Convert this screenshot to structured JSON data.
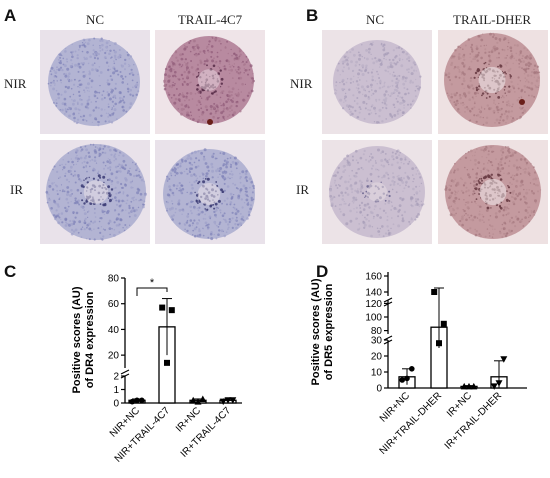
{
  "panels": {
    "A": {
      "letter": "A",
      "col_labels": [
        "NC",
        "TRAIL-4C7"
      ],
      "row_labels": [
        "NIR",
        "IR"
      ]
    },
    "B": {
      "letter": "B",
      "col_labels": [
        "NC",
        "TRAIL-DHER"
      ],
      "row_labels": [
        "NIR",
        "IR"
      ]
    },
    "C": {
      "letter": "C"
    },
    "D": {
      "letter": "D"
    }
  },
  "chart_data": [
    {
      "panel": "C",
      "type": "bar",
      "ylabel": "Positive scores  (AU)\nof DR4 expression",
      "categories": [
        "NIR+NC",
        "NIR+TRAIL-4C7",
        "IR+NC",
        "IR+TRAIL-4C7"
      ],
      "values": [
        0.2,
        42,
        0.2,
        0.2
      ],
      "error": [
        0.1,
        22,
        0.1,
        0.1
      ],
      "points": [
        [
          0.1,
          0.2,
          0.2
        ],
        [
          57,
          55,
          14
        ],
        [
          0.2,
          0.3,
          0.1
        ],
        [
          0.1,
          0.2,
          0.2
        ]
      ],
      "axis_segments": [
        {
          "ticks": [
            0,
            1,
            2
          ],
          "labels": [
            "0",
            "1",
            "2"
          ]
        },
        {
          "ticks": [
            20,
            40,
            60,
            80
          ],
          "labels": [
            "20",
            "40",
            "60",
            "80"
          ]
        }
      ],
      "significance": {
        "from": 0,
        "to": 1,
        "label": "*"
      }
    },
    {
      "panel": "D",
      "type": "bar",
      "ylabel": "Positive scores (AU)\nof DR5 expression",
      "categories": [
        "NIR+NC",
        "NIR+TRAIL-DHER",
        "IR+NC",
        "IR+TRAIL-DHER"
      ],
      "values": [
        7,
        85,
        1,
        7
      ],
      "error": [
        5,
        60,
        0.5,
        10
      ],
      "points": [
        [
          5,
          12,
          6
        ],
        [
          140,
          90,
          28
        ],
        [
          1,
          1,
          1
        ],
        [
          1,
          18,
          3
        ]
      ],
      "axis_segments": [
        {
          "ticks": [
            0,
            10,
            20,
            30
          ],
          "labels": [
            "0",
            "10",
            "20",
            "30"
          ]
        },
        {
          "ticks": [
            80,
            100,
            120
          ],
          "labels": [
            "80",
            "100",
            "120"
          ]
        },
        {
          "ticks": [
            140,
            160
          ],
          "labels": [
            "140",
            "160"
          ]
        }
      ]
    }
  ]
}
